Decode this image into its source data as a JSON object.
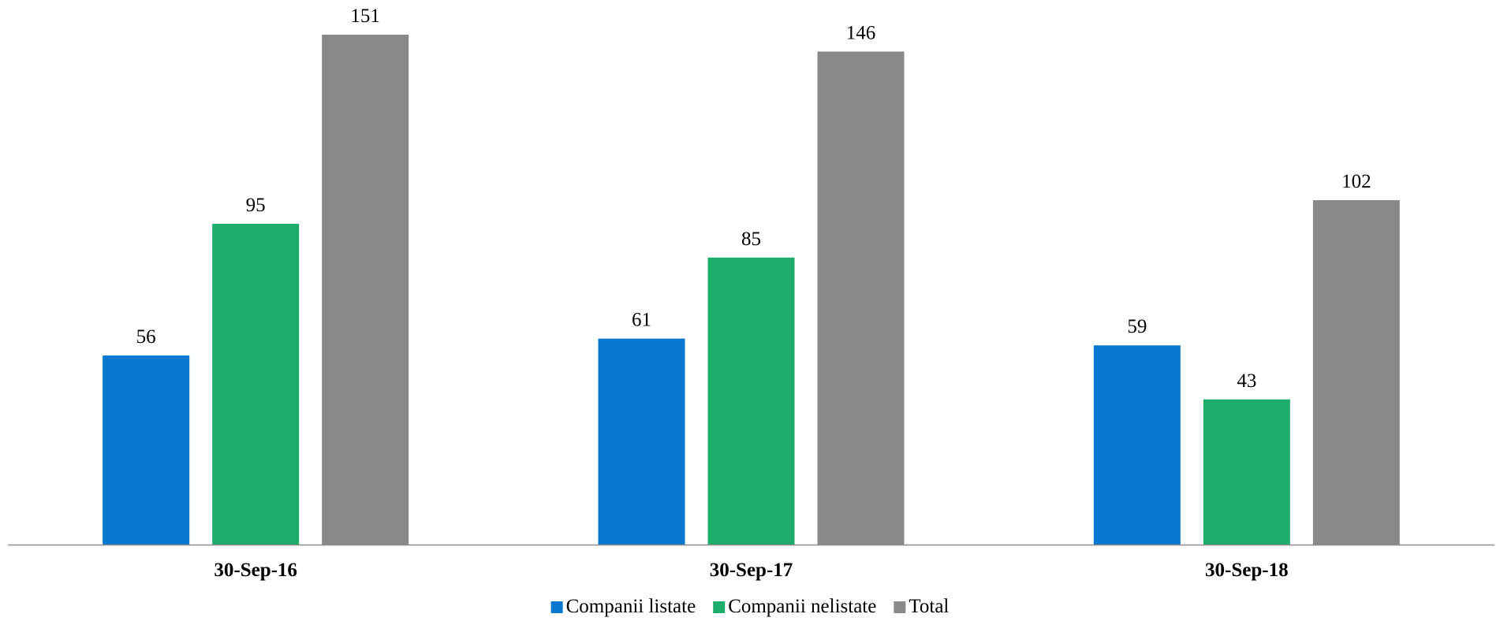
{
  "chart_data": {
    "type": "bar",
    "categories": [
      "30-Sep-16",
      "30-Sep-17",
      "30-Sep-18"
    ],
    "series": [
      {
        "name": "Companii listate",
        "values": [
          56,
          61,
          59
        ],
        "color": "#0777CF"
      },
      {
        "name": "Companii nelistate",
        "values": [
          95,
          85,
          43
        ],
        "color": "#1DAC6A"
      },
      {
        "name": "Total",
        "values": [
          151,
          146,
          102
        ],
        "color": "#898989"
      }
    ],
    "title": "",
    "xlabel": "",
    "ylabel": "",
    "ylim": [
      0,
      160
    ],
    "grid": false,
    "data_labels": true,
    "legend_position": "bottom",
    "axis_color": "#8C8C8C"
  }
}
